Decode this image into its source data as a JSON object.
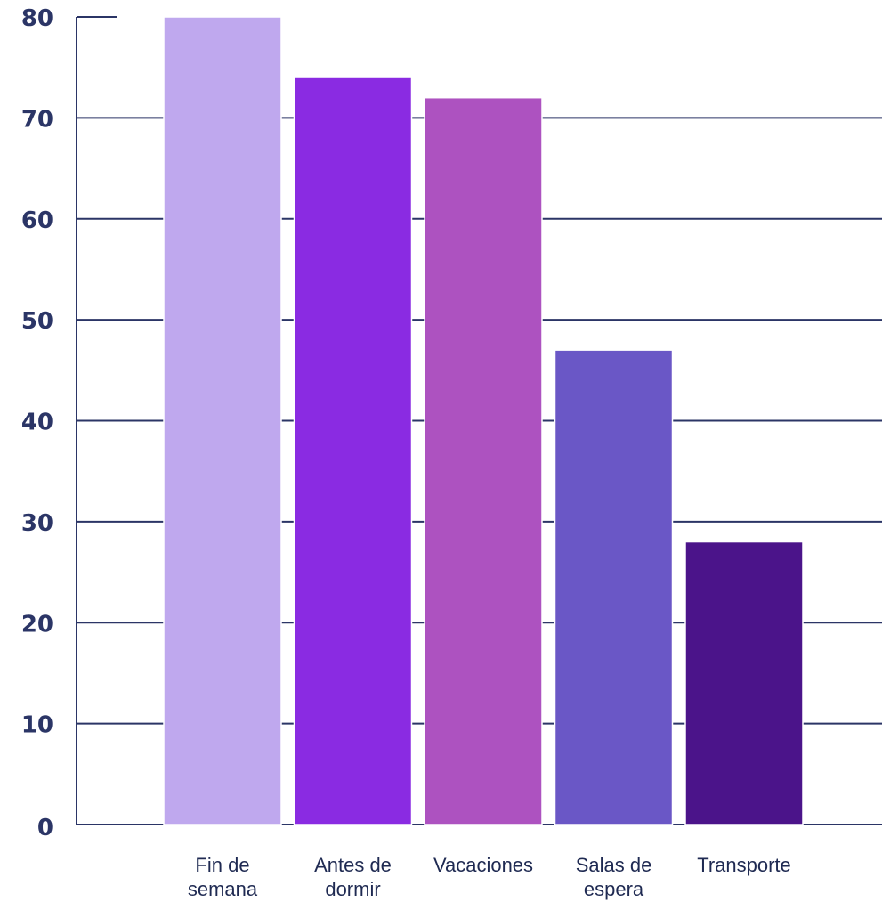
{
  "chart_data": {
    "type": "bar",
    "title": "",
    "xlabel": "",
    "ylabel": "",
    "ylim": [
      0,
      80
    ],
    "yticks": [
      0,
      10,
      20,
      30,
      40,
      50,
      60,
      70,
      80
    ],
    "grid": true,
    "categories": [
      [
        "Fin de",
        "semana"
      ],
      [
        "Antes de",
        "dormir"
      ],
      [
        "Vacaciones"
      ],
      [
        "Salas de",
        "espera"
      ],
      [
        "Transporte"
      ]
    ],
    "values": [
      80,
      74,
      72,
      47,
      28
    ],
    "colors": [
      "#bfa8ee",
      "#8a2be2",
      "#ad52c0",
      "#6a57c6",
      "#4b148a"
    ],
    "gridColor": "#2b3566"
  }
}
